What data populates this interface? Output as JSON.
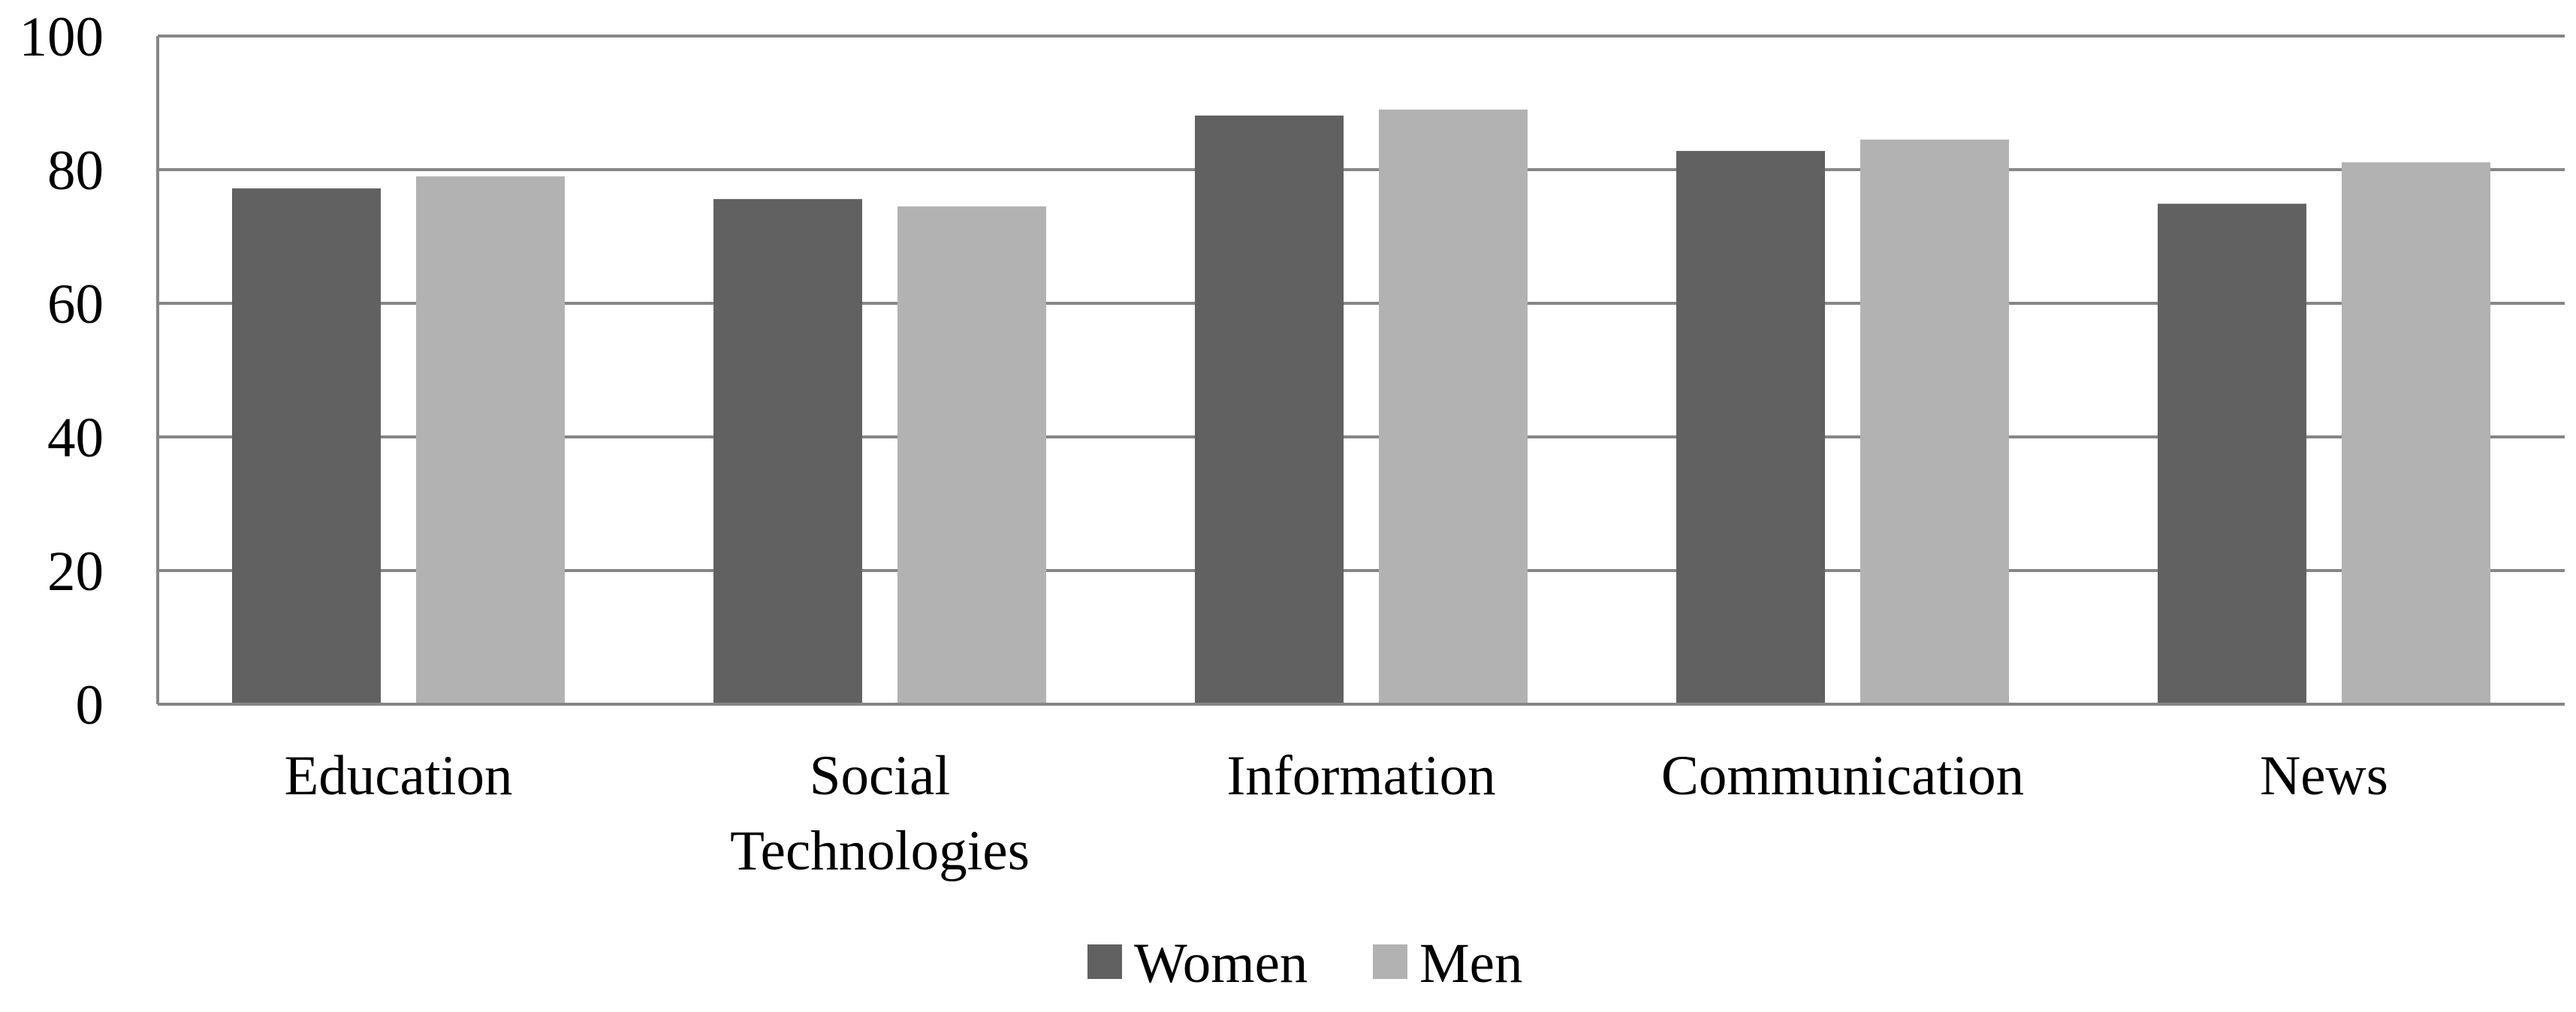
{
  "chart_data": {
    "type": "bar",
    "categories": [
      [
        "Education"
      ],
      [
        "Social",
        "Technologies"
      ],
      [
        "Information"
      ],
      [
        "Communication"
      ],
      [
        "News"
      ]
    ],
    "series": [
      {
        "name": "Women",
        "color": "#616161",
        "values": [
          77.2,
          75.6,
          88.1,
          82.8,
          74.9
        ]
      },
      {
        "name": "Men",
        "color": "#b2b2b2",
        "values": [
          79.0,
          74.5,
          89.0,
          84.5,
          81.1
        ]
      }
    ],
    "yticks": [
      "0",
      "20",
      "40",
      "60",
      "80",
      "100"
    ],
    "ylim": [
      0,
      100
    ],
    "grid": true,
    "legend_position": "bottom-center",
    "title": "",
    "xlabel": "",
    "ylabel": ""
  }
}
